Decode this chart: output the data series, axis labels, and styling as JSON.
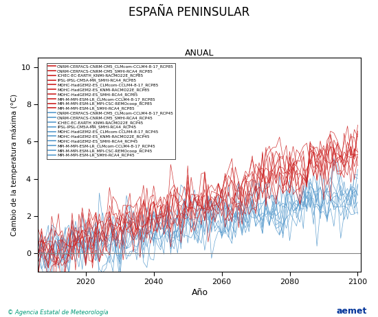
{
  "title": "ESPAÑA PENINSULAR",
  "subtitle": "ANUAL",
  "ylabel": "Cambio de la temperatura máxima (°C)",
  "xlabel": "Año",
  "xlim": [
    2006,
    2101
  ],
  "ylim": [
    -1.0,
    10.5
  ],
  "yticks": [
    0,
    2,
    4,
    6,
    8,
    10
  ],
  "xticks": [
    2020,
    2040,
    2060,
    2080,
    2100
  ],
  "x_start": 2006,
  "x_end": 2100,
  "rcp85_color": "#CC2020",
  "rcp45_color": "#5599CC",
  "n_rcp85": 10,
  "n_rcp45": 10,
  "legend_rcp85": [
    "CNRM-CERFACS-CNRM-CM5_CLMcom-CCLM4-8-17_RCP85",
    "CNRM-CERFACS-CNRM-CM5_SMHI-RCA4_RCP85",
    "ICHEC-EC-EARTH_KNMI-RACMO22E_RCP85",
    "IPSL-IPSL-CM5A-MR_SMHI-RCA4_RCP85",
    "MOHC-HadGEM2-ES_CLMcom-CCLM4-8-17_RCP85",
    "MOHC-HadGEM2-ES_KNMI-RACMO22E_RCP85",
    "MOHC-HadGEM2-ES_SMHI-RCA4_RCP85",
    "MPI-M-MPI-ESM-LR_CLMcom-CCLM4-8-17_RCP85",
    "MPI-M-MPI-ESM-LR_MPI-CSC-REMOcoop_RCP85",
    "MPI-M-MPI-ESM-LR_SMHI-RCA4_RCP85"
  ],
  "legend_rcp45": [
    "CNRM-CERFACS-CNRM-CM5_CLMcom-CCLM4-8-17_RCP45",
    "CNRM-CERFACS-CNRM-CM5_SMHI-RCA4_RCP45",
    "ICHEC-EC-EARTH_KNMI-RACMO22E_RCP45",
    "IPSL-IPSL-CM5A-MR_SMHI-RCA4_RCP45",
    "MOHC-HadGEM2-ES_CLMcom-CCLM4-8-17_RCP45",
    "MOHC-HadGEM2-ES_KNMI-RACMO22E_RCP45",
    "MOHC-HadGEM2-ES_SMHI-RCA4_RCP45",
    "MPI-M-MPI-ESM-LR_CLMcom-CCLM4-8-17_RCP45",
    "MPI-M-MPI-ESM-LR_MPI-CSC-REMOcoop_RCP45",
    "MPI-M-MPI-ESM-LR_SMHI-RCA4_RCP45"
  ],
  "footer_left": "© Agencia Estatal de Meteorología",
  "footer_right": "aemet",
  "figsize": [
    5.5,
    4.62
  ],
  "dpi": 100
}
